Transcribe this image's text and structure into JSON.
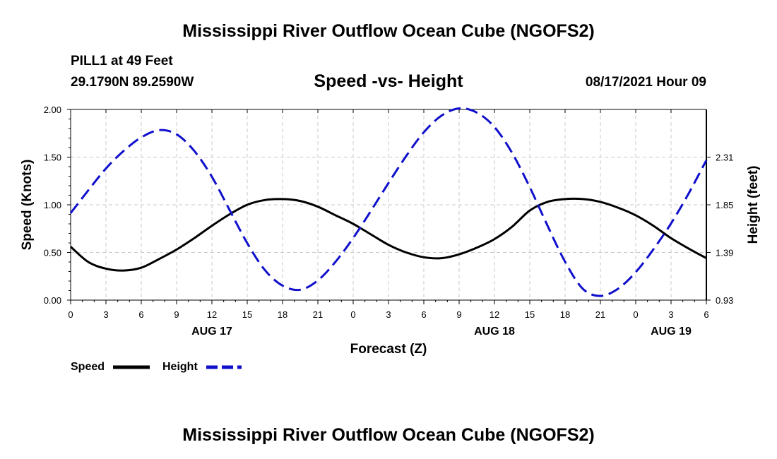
{
  "header": {
    "title": "Mississippi River Outflow Ocean Cube (NGOFS2)",
    "station_line": "PILL1 at 49 Feet",
    "coords_line": "29.1790N  89.2590W",
    "date_line": "08/17/2021 Hour 09"
  },
  "footer": {
    "title": "Mississippi River Outflow Ocean Cube (NGOFS2)"
  },
  "chart_data": {
    "type": "line",
    "title": "Speed -vs- Height",
    "xlabel": "Forecast (Z)",
    "ylabel": "Speed (Knots)",
    "y2label": "Height (feet)",
    "x_unit": "hours since 08/17 00Z",
    "xlim": [
      0,
      54
    ],
    "ylim": [
      0,
      2
    ],
    "y2lim": [
      0.93,
      2.77
    ],
    "grid": true,
    "x_ticks": [
      0,
      3,
      6,
      9,
      12,
      15,
      18,
      21,
      24,
      27,
      30,
      33,
      36,
      39,
      42,
      45,
      48,
      51,
      54
    ],
    "x_tick_labels": [
      "0",
      "3",
      "6",
      "9",
      "12",
      "15",
      "18",
      "21",
      "0",
      "3",
      "6",
      "9",
      "12",
      "15",
      "18",
      "21",
      "0",
      "3",
      "6"
    ],
    "y_ticks": [
      0,
      0.5,
      1.0,
      1.5,
      2.0
    ],
    "y_tick_labels": [
      "0.00",
      "0.50",
      "1.00",
      "1.50",
      "2.00"
    ],
    "y2_ticks": [
      0.93,
      1.39,
      1.85,
      2.31
    ],
    "y2_tick_labels": [
      "0.93",
      "1.39",
      "1.85",
      "2.31"
    ],
    "date_labels": [
      {
        "x": 12,
        "label": "AUG 17"
      },
      {
        "x": 36,
        "label": "AUG 18"
      },
      {
        "x": 51,
        "label": "AUG 19"
      }
    ],
    "legend": {
      "placement": "bottom-left"
    },
    "series": [
      {
        "name": "Speed",
        "axis": "left",
        "color": "#000000",
        "style": "solid",
        "x": [
          0,
          1.5,
          3,
          4.5,
          6,
          7.5,
          9,
          10.5,
          12,
          13.5,
          15,
          16.5,
          18,
          19.5,
          21,
          22.5,
          24,
          25.5,
          27,
          28.5,
          30,
          31.5,
          33,
          34.5,
          36,
          37.5,
          39,
          40.5,
          42,
          43.5,
          45,
          46.5,
          48,
          49.5,
          51,
          52.5,
          54
        ],
        "values": [
          0.56,
          0.4,
          0.33,
          0.31,
          0.34,
          0.43,
          0.53,
          0.65,
          0.78,
          0.9,
          1.0,
          1.05,
          1.06,
          1.04,
          0.98,
          0.89,
          0.8,
          0.69,
          0.58,
          0.5,
          0.45,
          0.44,
          0.48,
          0.55,
          0.64,
          0.77,
          0.94,
          1.03,
          1.06,
          1.06,
          1.03,
          0.97,
          0.89,
          0.78,
          0.65,
          0.54,
          0.44
        ]
      },
      {
        "name": "Height",
        "axis": "right",
        "color": "#1010cc",
        "style": "dashed",
        "x": [
          0,
          1.5,
          3,
          4.5,
          6,
          7.5,
          9,
          10.5,
          12,
          13.5,
          15,
          16.5,
          18,
          19.5,
          21,
          22.5,
          24,
          25.5,
          27,
          28.5,
          30,
          31.5,
          33,
          34.5,
          36,
          37.5,
          39,
          40.5,
          42,
          43.5,
          45,
          46.5,
          48,
          49.5,
          51,
          52.5,
          54
        ],
        "values": [
          1.77,
          1.99,
          2.2,
          2.37,
          2.5,
          2.57,
          2.53,
          2.37,
          2.12,
          1.8,
          1.48,
          1.22,
          1.07,
          1.03,
          1.12,
          1.3,
          1.53,
          1.79,
          2.06,
          2.32,
          2.55,
          2.71,
          2.78,
          2.74,
          2.6,
          2.35,
          2.02,
          1.65,
          1.3,
          1.04,
          0.97,
          1.04,
          1.2,
          1.42,
          1.67,
          1.96,
          2.28
        ]
      }
    ]
  }
}
